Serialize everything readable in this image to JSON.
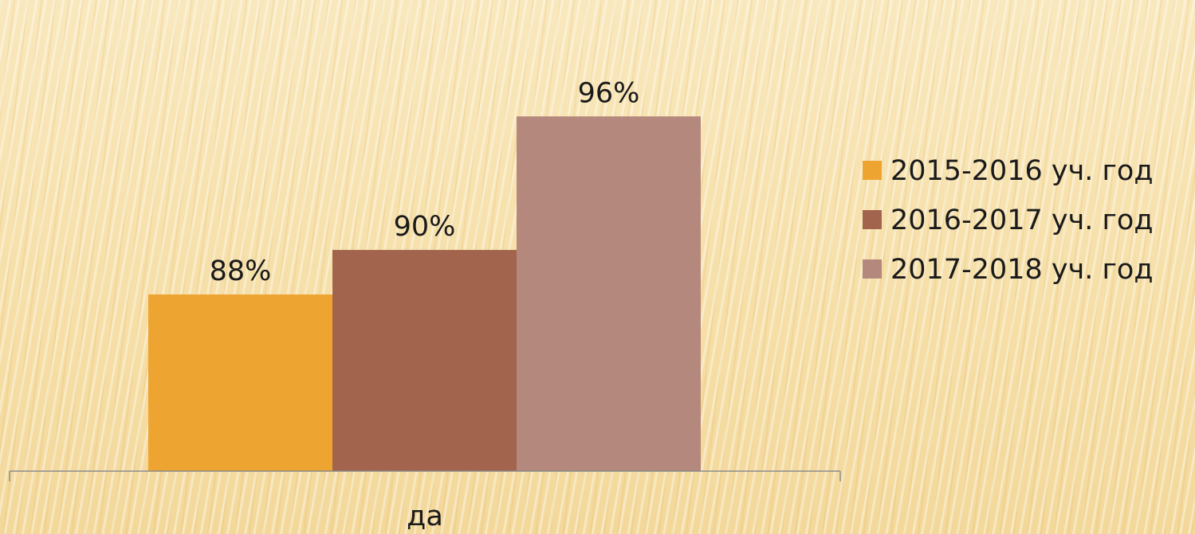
{
  "chart_data": {
    "type": "bar",
    "categories": [
      "да"
    ],
    "series": [
      {
        "name": "2015-2016 уч. год",
        "values": [
          88
        ],
        "label": "88%",
        "color": "#eea431"
      },
      {
        "name": "2016-2017 уч. год",
        "values": [
          90
        ],
        "label": "90%",
        "color": "#a3644e"
      },
      {
        "name": "2017-2018 уч. год",
        "values": [
          96
        ],
        "label": "96%",
        "color": "#b5887d"
      }
    ],
    "ylim": [
      0,
      100
    ],
    "grid": false,
    "legend_position": "right"
  }
}
